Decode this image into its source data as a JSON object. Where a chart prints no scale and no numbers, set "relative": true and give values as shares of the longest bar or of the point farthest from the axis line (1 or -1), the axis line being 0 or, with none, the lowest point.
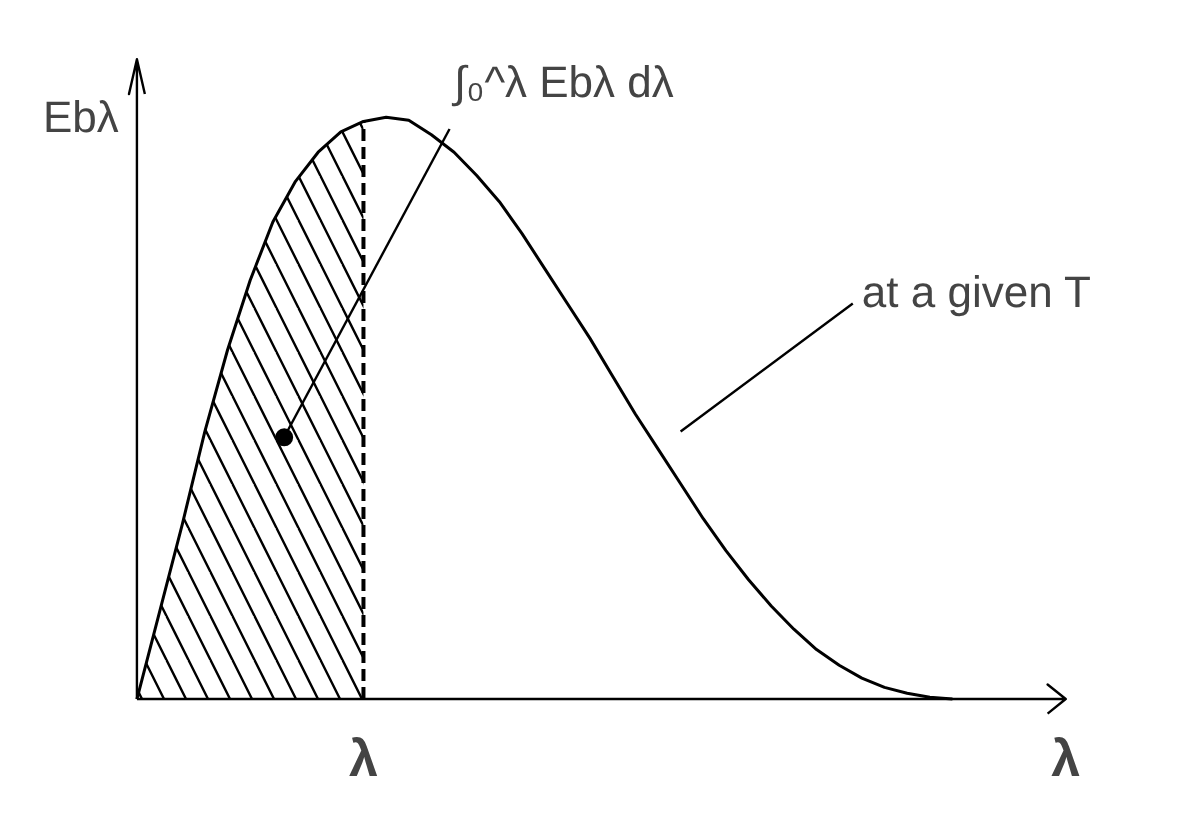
{
  "chart_data": {
    "type": "line",
    "relative": true,
    "xlabel": "λ",
    "ylabel": "Ebλ",
    "grid": false,
    "categories": [
      null,
      null,
      null,
      null,
      null,
      null,
      null,
      null,
      null,
      null,
      null,
      null,
      null,
      null,
      null,
      null,
      null,
      null,
      null,
      null,
      null,
      null,
      null,
      null,
      null,
      null,
      null,
      null,
      null,
      null,
      null,
      null,
      null,
      null,
      null,
      null,
      null,
      null,
      null,
      null
    ],
    "series": [
      {
        "color": "#000000",
        "values": [
          0,
          0.15,
          0.3,
          0.46,
          0.6,
          0.72,
          0.82,
          0.89,
          0.94,
          0.975,
          0.993,
          1.0,
          0.995,
          0.97,
          0.94,
          0.9,
          0.855,
          0.8,
          0.74,
          0.68,
          0.62,
          0.555,
          0.49,
          0.43,
          0.37,
          0.31,
          0.255,
          0.205,
          0.16,
          0.12,
          0.085,
          0.058,
          0.036,
          0.02,
          0.01,
          0.003,
          0,
          null,
          null,
          null
        ]
      },
      {
        "type": "area",
        "color": "#000000",
        "values": [
          0,
          0.15,
          0.3,
          0.46,
          0.6,
          0.72,
          0.82,
          0.89,
          0.94,
          0.975,
          0.993,
          null,
          null,
          null,
          null,
          null,
          null,
          null,
          null,
          null,
          null,
          null,
          null,
          null,
          null,
          null,
          null,
          null,
          null,
          null,
          null,
          null,
          null,
          null,
          null,
          null,
          null,
          null,
          null,
          null
        ]
      }
    ],
    "annotations": [
      "∫₀^λ Ebλ dλ",
      "at a given T",
      "λ"
    ]
  }
}
